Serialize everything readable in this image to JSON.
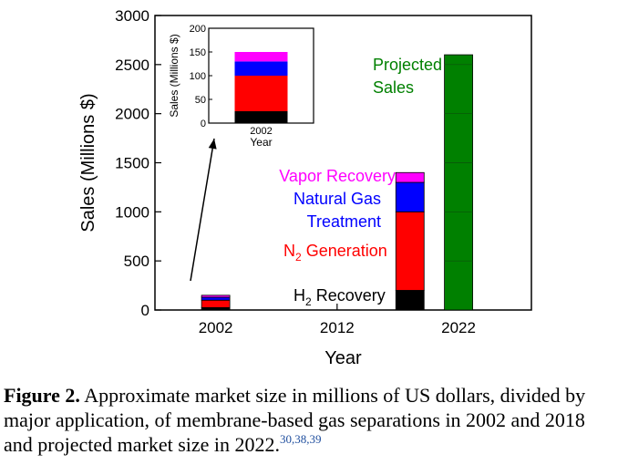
{
  "chart_data": [
    {
      "type": "bar",
      "stacked": true,
      "xlabel": "Year",
      "ylabel": "Sales (Millions $)",
      "ylim": [
        0,
        3000
      ],
      "yticks": [
        0,
        500,
        1000,
        1500,
        2000,
        2500,
        3000
      ],
      "xlim": [
        1997,
        2028
      ],
      "xticks": [
        2002,
        2012,
        2022
      ],
      "x_tick_labels": [
        "2002",
        "2012",
        "2022"
      ],
      "series": [
        {
          "name": "H2 Recovery",
          "label_main": "H",
          "label_sub": "2",
          "label_rest": " Recovery",
          "color": "#000000",
          "points": [
            {
              "x": 2002,
              "value": 25
            },
            {
              "x": 2018,
              "value": 200
            }
          ]
        },
        {
          "name": "N2 Generation",
          "label_main": "N",
          "label_sub": "2",
          "label_rest": " Generation",
          "color": "#ff0000",
          "points": [
            {
              "x": 2002,
              "value": 75
            },
            {
              "x": 2018,
              "value": 800
            }
          ]
        },
        {
          "name": "Natural Gas Treatment",
          "label_lines": [
            "Natural Gas",
            "Treatment"
          ],
          "color": "#0000ff",
          "points": [
            {
              "x": 2002,
              "value": 30
            },
            {
              "x": 2018,
              "value": 300
            }
          ]
        },
        {
          "name": "Vapor Recovery",
          "label_lines": [
            "Vapor Recovery"
          ],
          "color": "#ff00ff",
          "points": [
            {
              "x": 2002,
              "value": 20
            },
            {
              "x": 2018,
              "value": 100
            }
          ]
        },
        {
          "name": "Projected Sales",
          "label_lines": [
            "Projected",
            "Sales"
          ],
          "color": "#008000",
          "points": [
            {
              "x": 2022,
              "value": 2600
            }
          ]
        }
      ],
      "grid": false,
      "legend": "inline labels"
    },
    {
      "type": "bar",
      "stacked": true,
      "inset": true,
      "xlabel": "Year",
      "ylabel": "Sales (Millions $)",
      "ylim": [
        0,
        200
      ],
      "yticks": [
        0,
        50,
        100,
        150,
        200
      ],
      "categories": [
        "2002"
      ],
      "series": [
        {
          "name": "H2 Recovery",
          "color": "#000000",
          "values": [
            25
          ]
        },
        {
          "name": "N2 Generation",
          "color": "#ff0000",
          "values": [
            75
          ]
        },
        {
          "name": "Natural Gas Treatment",
          "color": "#0000ff",
          "values": [
            30
          ]
        },
        {
          "name": "Vapor Recovery",
          "color": "#ff00ff",
          "values": [
            20
          ]
        }
      ]
    }
  ],
  "caption": {
    "label": "Figure 2.",
    "text": " Approximate market size in millions of US dollars, divided by major application, of membrane-based gas separations in 2002 and 2018 and projected market size in 2022.",
    "refs": "30,38,39"
  }
}
